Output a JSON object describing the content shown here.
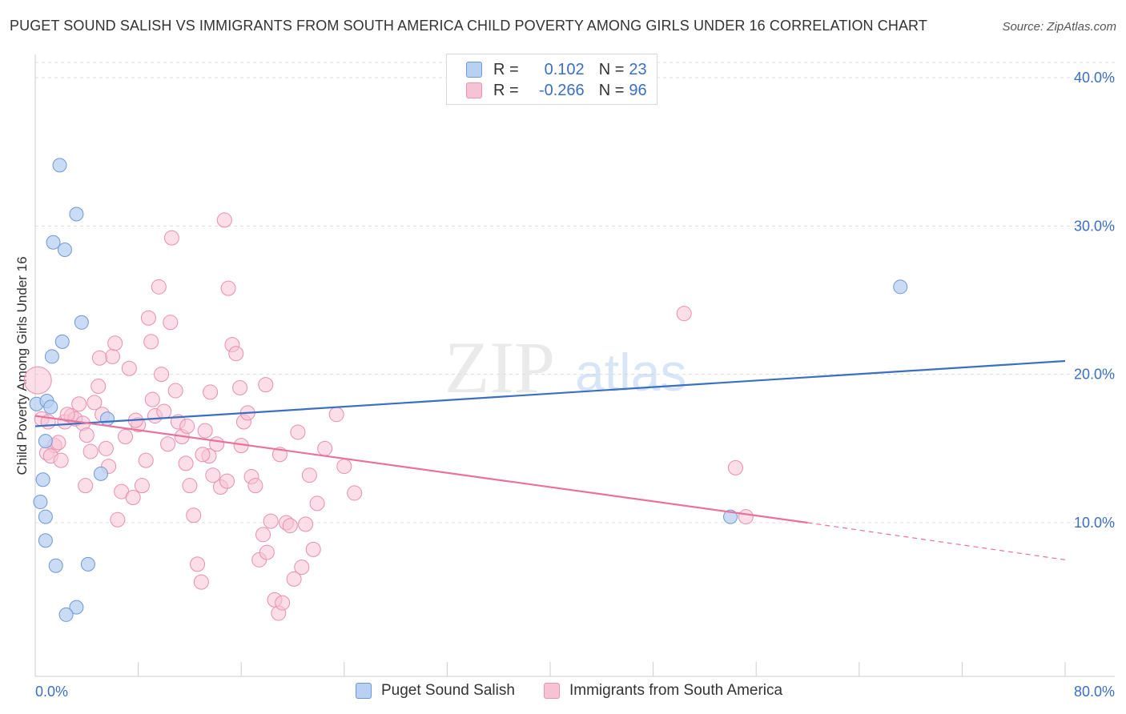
{
  "title": "PUGET SOUND SALISH VS IMMIGRANTS FROM SOUTH AMERICA CHILD POVERTY AMONG GIRLS UNDER 16 CORRELATION CHART",
  "source": "Source: ZipAtlas.com",
  "watermark": {
    "zip": "ZIP",
    "atlas": "atlas"
  },
  "colors": {
    "blue": "#3a6fc4",
    "blue_fill": "#b8d0f2",
    "pink": "#e8729a",
    "pink_fill": "#f7c3d3",
    "grid": "#dddddd",
    "label": "#3a6fc4"
  },
  "legend": {
    "rows": [
      {
        "swatch": "blue",
        "r_label": "R =",
        "r_value": "0.102",
        "n_label": "N =",
        "n_value": "23"
      },
      {
        "swatch": "pink",
        "r_label": "R =",
        "r_value": "-0.266",
        "n_label": "N =",
        "n_value": "96"
      }
    ]
  },
  "bottom_legend": [
    "Puget Sound Salish",
    "Immigrants from South America"
  ],
  "chart_data": {
    "type": "scatter",
    "title": "PUGET SOUND SALISH VS IMMIGRANTS FROM SOUTH AMERICA CHILD POVERTY AMONG GIRLS UNDER 16 CORRELATION CHART",
    "xlabel": "",
    "ylabel": "Child Poverty Among Girls Under 16",
    "xlim": [
      0,
      80
    ],
    "ylim": [
      0,
      40
    ],
    "x_tick_labels": [
      "0.0%",
      "80.0%"
    ],
    "y_ticks": [
      10,
      20,
      30,
      40
    ],
    "y_tick_labels": [
      "10.0%",
      "20.0%",
      "30.0%",
      "40.0%"
    ],
    "grid": "horizontal dashed",
    "legend_position": "top-center",
    "series": [
      {
        "name": "Puget Sound Salish",
        "color": "blue",
        "r": 0.102,
        "n": 23,
        "trend": {
          "x": [
            0,
            80
          ],
          "y": [
            16.5,
            20.9
          ]
        },
        "points": [
          [
            0.1,
            18.0
          ],
          [
            1.9,
            34.1
          ],
          [
            3.2,
            30.8
          ],
          [
            2.3,
            28.4
          ],
          [
            1.4,
            28.9
          ],
          [
            3.6,
            23.5
          ],
          [
            2.1,
            22.2
          ],
          [
            1.3,
            21.2
          ],
          [
            0.9,
            18.2
          ],
          [
            1.2,
            17.8
          ],
          [
            5.6,
            17.0
          ],
          [
            0.8,
            15.5
          ],
          [
            5.1,
            13.3
          ],
          [
            0.6,
            12.9
          ],
          [
            0.4,
            11.4
          ],
          [
            0.8,
            10.4
          ],
          [
            0.8,
            8.8
          ],
          [
            1.6,
            7.1
          ],
          [
            4.1,
            7.2
          ],
          [
            3.2,
            4.3
          ],
          [
            2.4,
            3.8
          ],
          [
            67.2,
            25.9
          ],
          [
            54.0,
            10.4
          ]
        ]
      },
      {
        "name": "Immigrants from South America",
        "color": "pink",
        "r": -0.266,
        "n": 96,
        "trend": {
          "x": [
            0,
            60.0
          ],
          "y": [
            17.2,
            10.0
          ]
        },
        "trend_dashed": {
          "x": [
            60.0,
            80
          ],
          "y": [
            10.0,
            7.5
          ]
        },
        "points": [
          [
            0.2,
            19.6
          ],
          [
            0.5,
            17.0
          ],
          [
            1.0,
            16.8
          ],
          [
            1.5,
            15.2
          ],
          [
            1.8,
            15.4
          ],
          [
            0.9,
            14.7
          ],
          [
            1.2,
            14.5
          ],
          [
            2.0,
            14.2
          ],
          [
            2.3,
            16.8
          ],
          [
            2.8,
            17.2
          ],
          [
            3.1,
            17.0
          ],
          [
            3.4,
            18.0
          ],
          [
            3.7,
            16.7
          ],
          [
            4.0,
            15.9
          ],
          [
            4.3,
            14.8
          ],
          [
            4.6,
            18.1
          ],
          [
            4.9,
            19.2
          ],
          [
            5.2,
            17.3
          ],
          [
            5.5,
            15.0
          ],
          [
            5.7,
            13.8
          ],
          [
            6.0,
            21.2
          ],
          [
            6.4,
            10.2
          ],
          [
            6.7,
            12.1
          ],
          [
            7.0,
            15.8
          ],
          [
            7.3,
            20.4
          ],
          [
            7.6,
            11.7
          ],
          [
            8.0,
            16.6
          ],
          [
            8.3,
            12.5
          ],
          [
            8.6,
            14.2
          ],
          [
            8.8,
            23.8
          ],
          [
            9.0,
            22.2
          ],
          [
            9.3,
            17.2
          ],
          [
            9.6,
            25.9
          ],
          [
            9.8,
            20.0
          ],
          [
            10.0,
            17.5
          ],
          [
            10.3,
            15.3
          ],
          [
            10.6,
            29.2
          ],
          [
            10.9,
            18.9
          ],
          [
            11.1,
            16.8
          ],
          [
            11.4,
            15.8
          ],
          [
            11.7,
            14.0
          ],
          [
            12.0,
            12.5
          ],
          [
            12.3,
            10.5
          ],
          [
            12.6,
            7.2
          ],
          [
            12.9,
            6.0
          ],
          [
            13.2,
            16.2
          ],
          [
            13.5,
            14.5
          ],
          [
            13.8,
            13.2
          ],
          [
            14.1,
            15.3
          ],
          [
            14.4,
            12.4
          ],
          [
            14.7,
            30.4
          ],
          [
            15.0,
            25.8
          ],
          [
            15.3,
            22.0
          ],
          [
            15.6,
            21.4
          ],
          [
            15.9,
            19.1
          ],
          [
            16.2,
            16.8
          ],
          [
            16.5,
            17.4
          ],
          [
            16.8,
            13.1
          ],
          [
            17.1,
            12.5
          ],
          [
            17.4,
            7.5
          ],
          [
            17.7,
            9.2
          ],
          [
            18.0,
            8.0
          ],
          [
            18.3,
            10.1
          ],
          [
            18.6,
            4.8
          ],
          [
            18.9,
            3.9
          ],
          [
            19.2,
            4.6
          ],
          [
            19.5,
            10.0
          ],
          [
            19.8,
            9.8
          ],
          [
            20.1,
            6.2
          ],
          [
            20.4,
            16.1
          ],
          [
            20.7,
            7.0
          ],
          [
            21.0,
            9.9
          ],
          [
            21.3,
            13.2
          ],
          [
            21.6,
            8.2
          ],
          [
            21.9,
            11.3
          ],
          [
            2.5,
            17.3
          ],
          [
            3.9,
            12.5
          ],
          [
            5.0,
            21.1
          ],
          [
            6.2,
            22.1
          ],
          [
            7.8,
            16.9
          ],
          [
            9.1,
            18.3
          ],
          [
            10.5,
            23.5
          ],
          [
            11.8,
            16.5
          ],
          [
            13.0,
            14.6
          ],
          [
            13.6,
            18.8
          ],
          [
            14.9,
            12.8
          ],
          [
            16.0,
            15.2
          ],
          [
            17.9,
            19.3
          ],
          [
            19.0,
            14.6
          ],
          [
            22.5,
            15.0
          ],
          [
            23.4,
            17.3
          ],
          [
            24.0,
            13.8
          ],
          [
            24.8,
            12.0
          ],
          [
            50.4,
            24.1
          ],
          [
            54.4,
            13.7
          ],
          [
            55.2,
            10.4
          ]
        ]
      }
    ]
  }
}
